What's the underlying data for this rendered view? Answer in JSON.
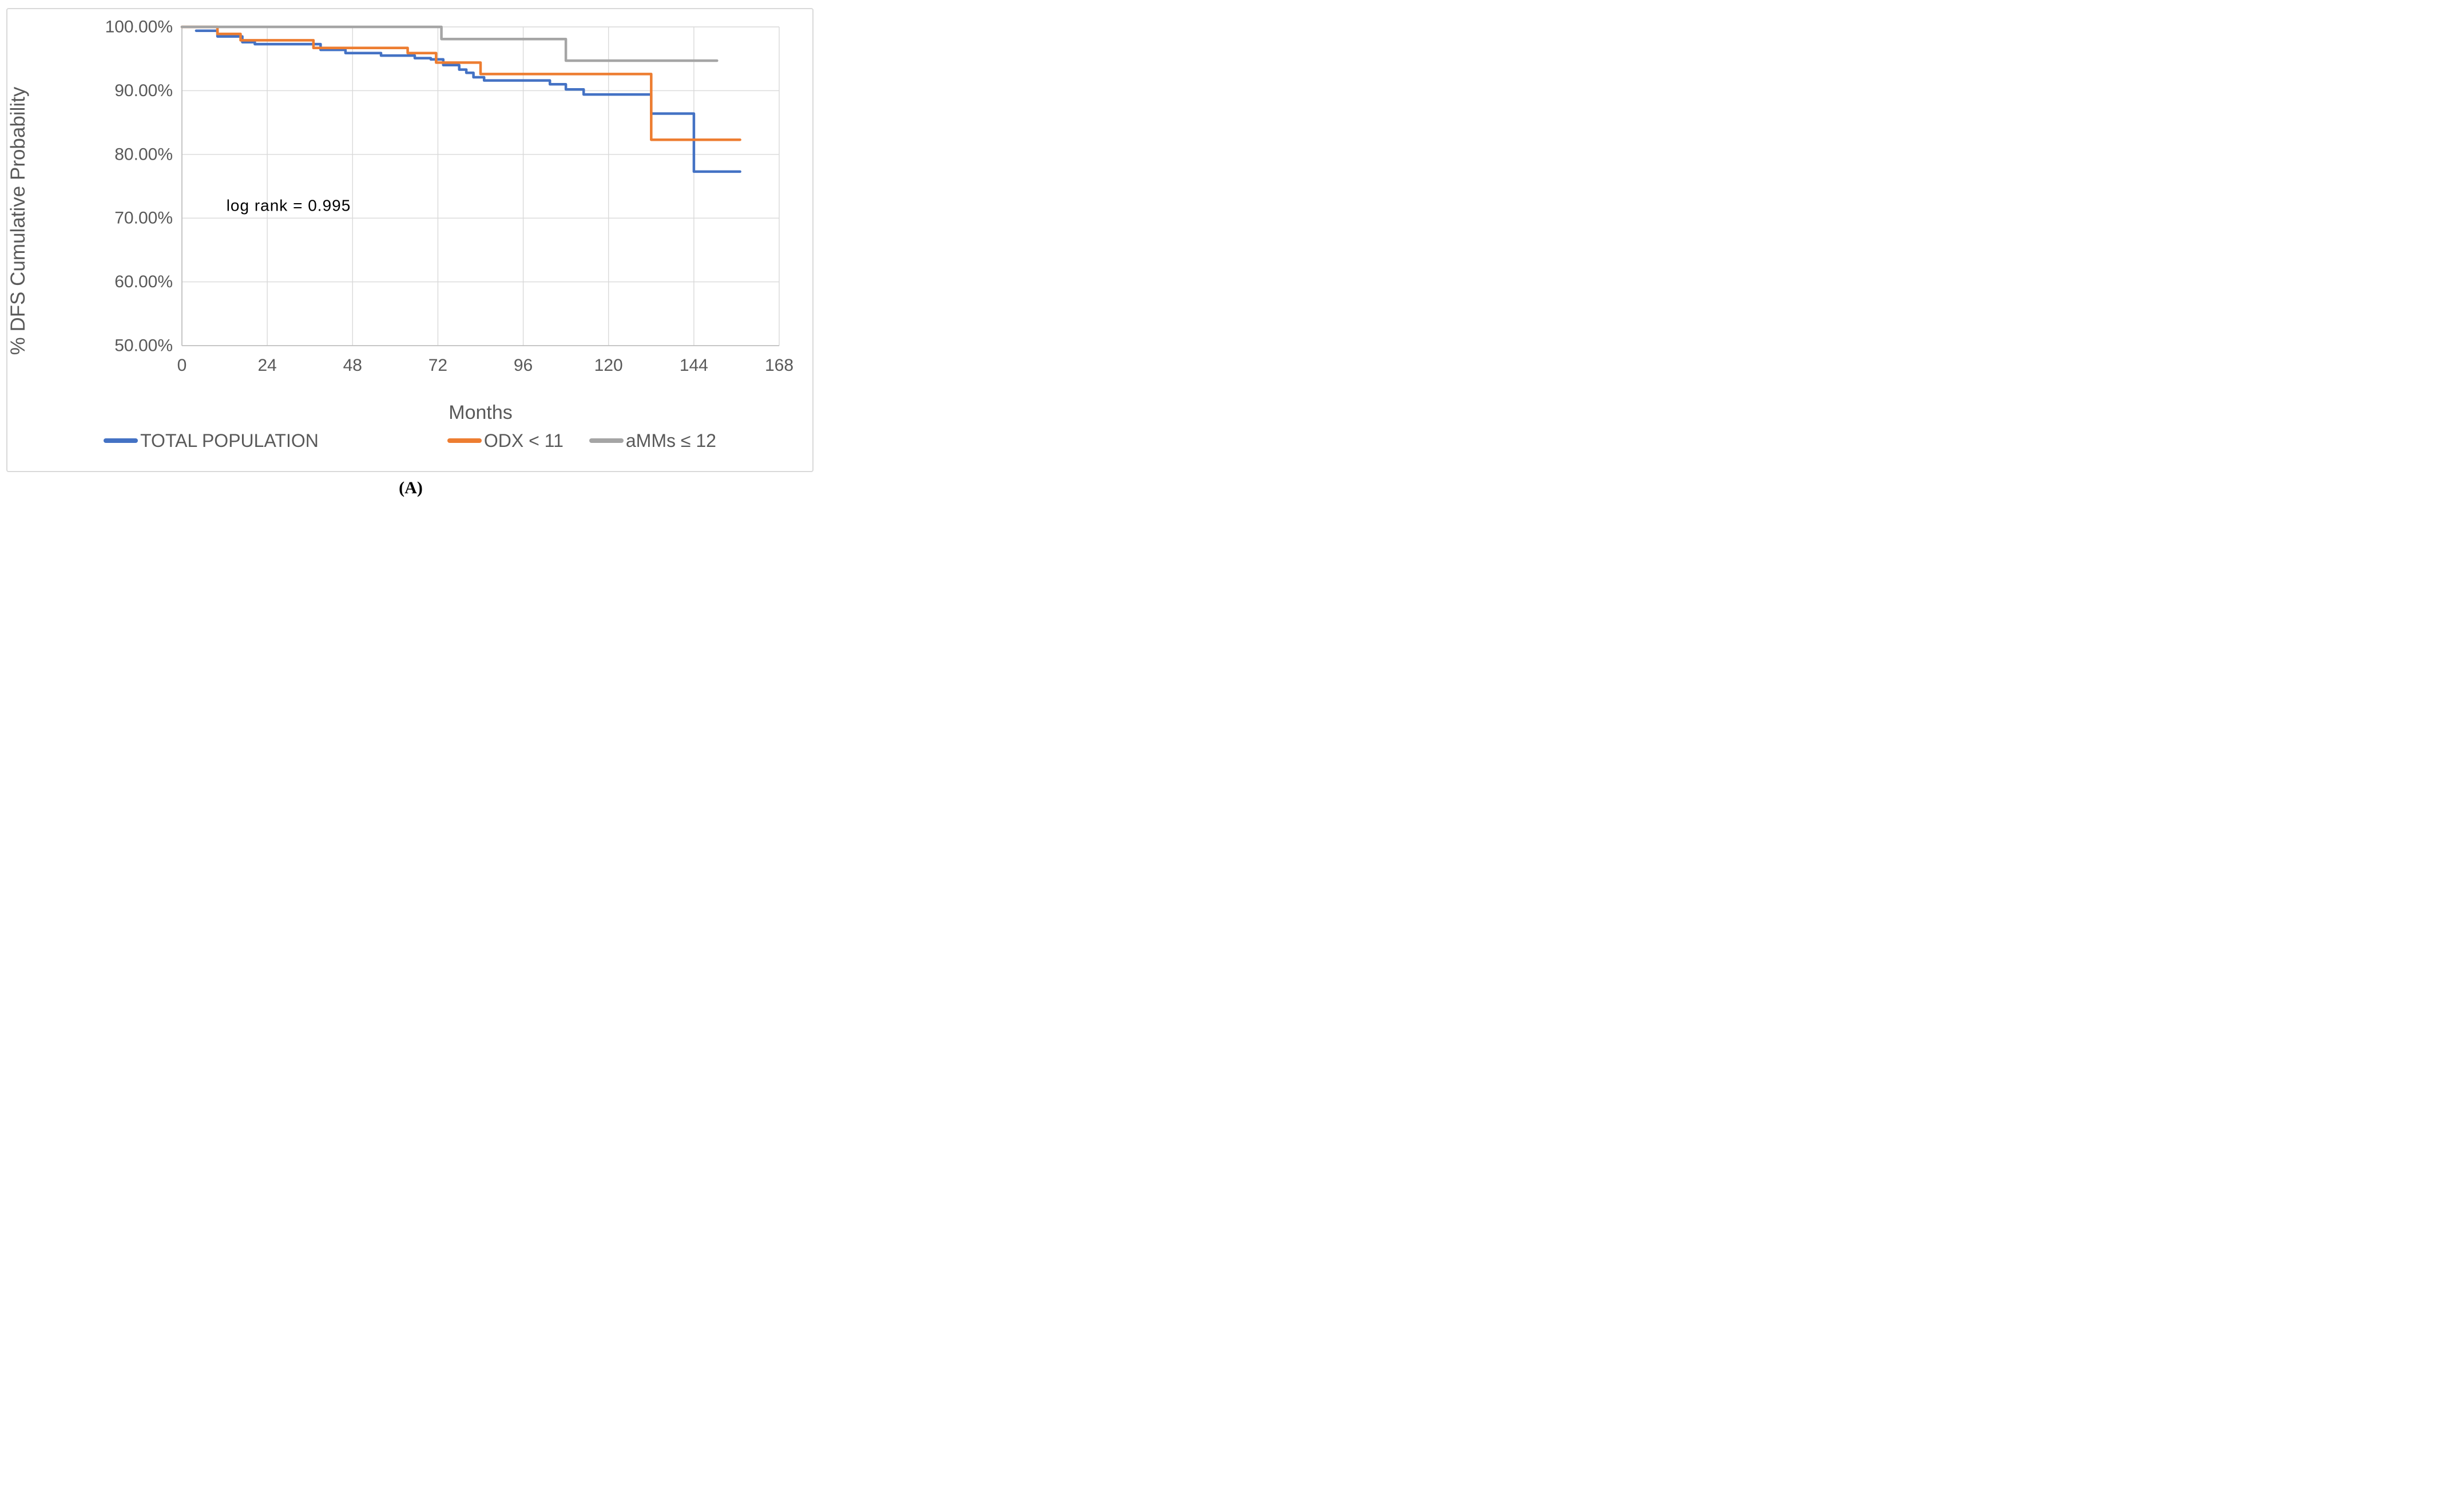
{
  "figure": {
    "caption": "(A)"
  },
  "chart_data": {
    "type": "line",
    "subtype": "kaplan-meier-step",
    "title": "",
    "xlabel": "Months",
    "ylabel": "% DFS Cumulative Probability",
    "xlim": [
      0,
      168
    ],
    "xticks": [
      0,
      24,
      48,
      72,
      96,
      120,
      144,
      168
    ],
    "ylim": [
      50,
      100
    ],
    "yticks": [
      {
        "value": 100,
        "label": "100.00%"
      },
      {
        "value": 90,
        "label": "90.00%"
      },
      {
        "value": 80,
        "label": "80.00%"
      },
      {
        "value": 70,
        "label": "70.00%"
      },
      {
        "value": 60,
        "label": "60.00%"
      },
      {
        "value": 50,
        "label": "50.00%"
      }
    ],
    "grid": true,
    "legend_position": "bottom",
    "annotation": {
      "text": "log rank = 0.995",
      "x_month": 12.5,
      "y_value": 72
    },
    "series": [
      {
        "name": "TOTAL POPULATION",
        "color": "#4472C4",
        "end_month": 157,
        "points": [
          [
            4,
            99.4
          ],
          [
            10,
            98.5
          ],
          [
            17,
            97.6
          ],
          [
            20.5,
            97.3
          ],
          [
            39,
            96.4
          ],
          [
            46,
            95.9
          ],
          [
            56,
            95.5
          ],
          [
            65.5,
            95.1
          ],
          [
            70,
            94.9
          ],
          [
            73.5,
            94.0
          ],
          [
            78,
            93.3
          ],
          [
            80,
            92.8
          ],
          [
            82,
            92.1
          ],
          [
            85,
            91.6
          ],
          [
            103.5,
            91.0
          ],
          [
            108,
            90.2
          ],
          [
            113,
            89.4
          ],
          [
            132,
            86.4
          ],
          [
            144,
            77.3
          ]
        ]
      },
      {
        "name": "ODX < 11",
        "color": "#ED7D31",
        "end_month": 157,
        "points": [
          [
            0,
            100
          ],
          [
            10,
            98.9
          ],
          [
            16.5,
            97.9
          ],
          [
            37,
            96.7
          ],
          [
            63.5,
            95.9
          ],
          [
            71.5,
            94.4
          ],
          [
            84,
            92.6
          ],
          [
            132,
            82.3
          ]
        ]
      },
      {
        "name": "aMMs ≤ 12",
        "color": "#A5A5A5",
        "end_month": 150.5,
        "points": [
          [
            0,
            100
          ],
          [
            73,
            98.1
          ],
          [
            108,
            94.7
          ]
        ]
      }
    ],
    "style": {
      "gridline_color": "#D9D9D9",
      "axis_line_color": "#BFBFBF",
      "tick_label_color": "#595959",
      "line_width": 4.5
    }
  }
}
